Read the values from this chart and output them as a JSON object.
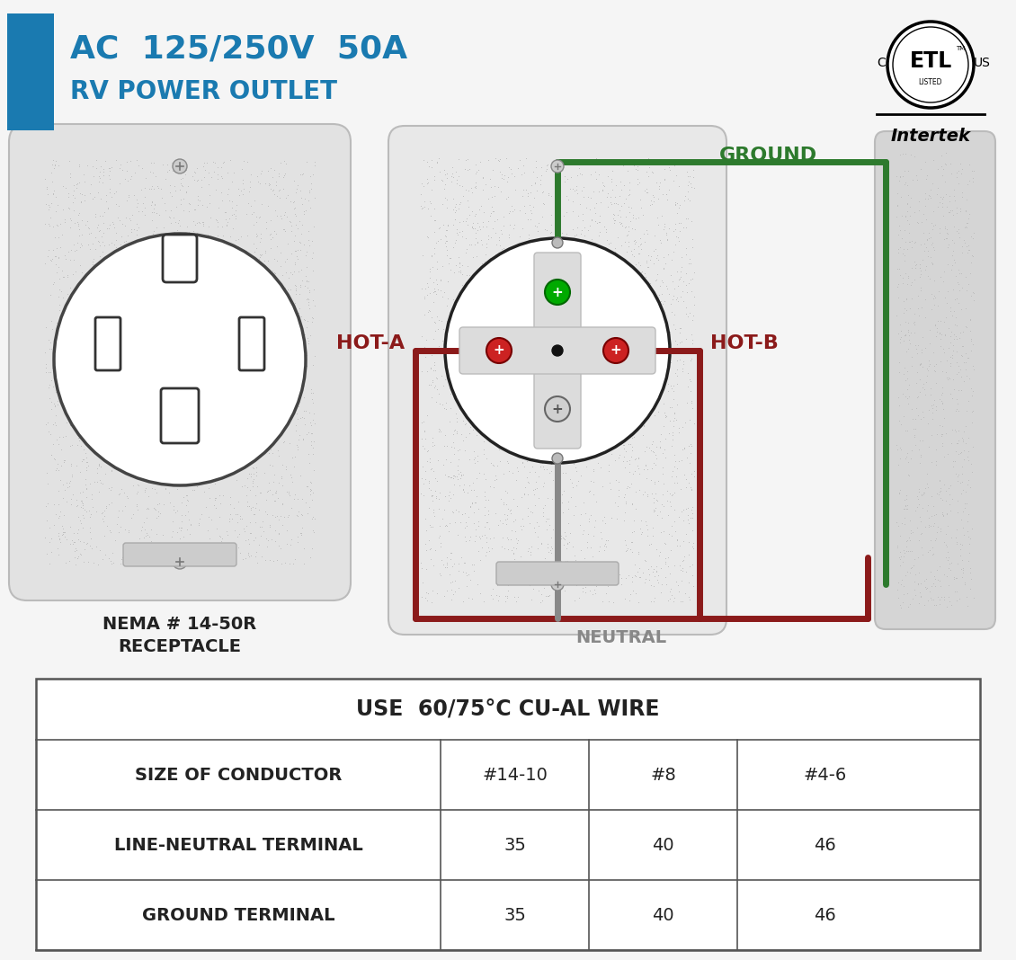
{
  "title_line1": "AC  125/250V  50A",
  "title_line2": "RV POWER OUTLET",
  "title_color": "#1a7ab0",
  "bg_color": "#f5f5f5",
  "receptacle_label_1": "NEMA # 14-50R",
  "receptacle_label_2": "RECEPTACLE",
  "ground_label": "GROUND",
  "hot_a_label": "HOT-A",
  "hot_b_label": "HOT-B",
  "neutral_label": "NEUTRAL",
  "wire_red": "#8B1A1A",
  "wire_green": "#2d7a2d",
  "wire_gray": "#888888",
  "table_header": "USE  60/75°C CU-AL WIRE",
  "table_rows": [
    [
      "SIZE OF CONDUCTOR",
      "#14-10",
      "#8",
      "#4-6"
    ],
    [
      "LINE-NEUTRAL TERMINAL",
      "35",
      "40",
      "46"
    ],
    [
      "GROUND TERMINAL",
      "35",
      "40",
      "46"
    ]
  ],
  "panel_bg": "#d5d5d5",
  "outlet_bg": "#e2e2e2",
  "cross_bg": "#e8e8e8"
}
